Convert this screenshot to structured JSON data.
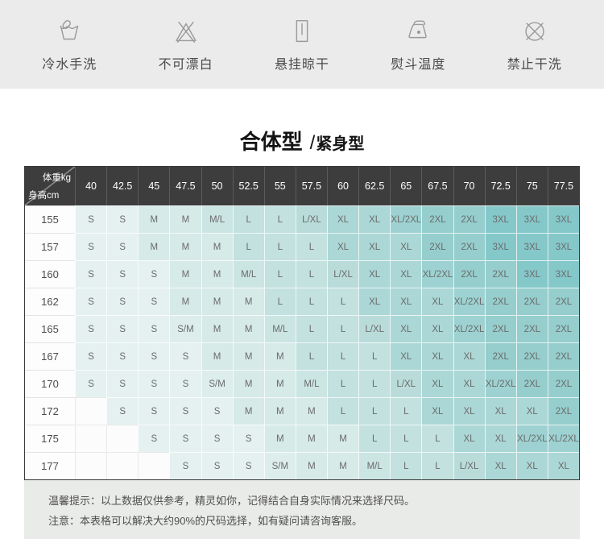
{
  "care": {
    "items": [
      {
        "icon": "handwash-icon",
        "label": "冷水手洗"
      },
      {
        "icon": "no-bleach-icon",
        "label": "不可漂白"
      },
      {
        "icon": "hang-dry-icon",
        "label": "悬挂晾干"
      },
      {
        "icon": "iron-icon",
        "label": "熨斗温度"
      },
      {
        "icon": "no-dryclean-icon",
        "label": "禁止干洗"
      }
    ]
  },
  "title": {
    "primary": "合体型",
    "separator": "/",
    "secondary": "紧身型"
  },
  "size_table": {
    "corner": {
      "top_right": "体重kg",
      "bottom_left": "身高cm"
    },
    "weight_columns": [
      "40",
      "42.5",
      "45",
      "47.5",
      "50",
      "52.5",
      "55",
      "57.5",
      "60",
      "62.5",
      "65",
      "67.5",
      "70",
      "72.5",
      "75",
      "77.5"
    ],
    "rows": [
      {
        "height": "155",
        "sizes": [
          "S",
          "S",
          "M",
          "M",
          "M/L",
          "L",
          "L",
          "L/XL",
          "XL",
          "XL",
          "XL/2XL",
          "2XL",
          "2XL",
          "3XL",
          "3XL",
          "3XL"
        ]
      },
      {
        "height": "157",
        "sizes": [
          "S",
          "S",
          "M",
          "M",
          "M",
          "L",
          "L",
          "L",
          "XL",
          "XL",
          "XL",
          "2XL",
          "2XL",
          "3XL",
          "3XL",
          "3XL"
        ]
      },
      {
        "height": "160",
        "sizes": [
          "S",
          "S",
          "S",
          "M",
          "M",
          "M/L",
          "L",
          "L",
          "L/XL",
          "XL",
          "XL",
          "XL/2XL",
          "2XL",
          "2XL",
          "3XL",
          "3XL"
        ]
      },
      {
        "height": "162",
        "sizes": [
          "S",
          "S",
          "S",
          "M",
          "M",
          "M",
          "L",
          "L",
          "L",
          "XL",
          "XL",
          "XL",
          "XL/2XL",
          "2XL",
          "2XL",
          "2XL"
        ]
      },
      {
        "height": "165",
        "sizes": [
          "S",
          "S",
          "S",
          "S/M",
          "M",
          "M",
          "M/L",
          "L",
          "L",
          "L/XL",
          "XL",
          "XL",
          "XL/2XL",
          "2XL",
          "2XL",
          "2XL"
        ]
      },
      {
        "height": "167",
        "sizes": [
          "S",
          "S",
          "S",
          "S",
          "M",
          "M",
          "M",
          "L",
          "L",
          "L",
          "XL",
          "XL",
          "XL",
          "2XL",
          "2XL",
          "2XL"
        ]
      },
      {
        "height": "170",
        "sizes": [
          "S",
          "S",
          "S",
          "S",
          "S/M",
          "M",
          "M",
          "M/L",
          "L",
          "L",
          "L/XL",
          "XL",
          "XL",
          "XL/2XL",
          "2XL",
          "2XL"
        ]
      },
      {
        "height": "172",
        "sizes": [
          "",
          "S",
          "S",
          "S",
          "S",
          "M",
          "M",
          "M",
          "L",
          "L",
          "L",
          "XL",
          "XL",
          "XL",
          "XL",
          "2XL"
        ]
      },
      {
        "height": "175",
        "sizes": [
          "",
          "",
          "S",
          "S",
          "S",
          "S",
          "M",
          "M",
          "M",
          "L",
          "L",
          "L",
          "XL",
          "XL",
          "XL/2XL",
          "XL/2XL"
        ]
      },
      {
        "height": "177",
        "sizes": [
          "",
          "",
          "",
          "S",
          "S",
          "S",
          "S/M",
          "M",
          "M",
          "M/L",
          "L",
          "L",
          "L/XL",
          "XL",
          "XL",
          "XL"
        ]
      }
    ]
  },
  "notes": {
    "line1": "温馨提示：以上数据仅供参考，精灵如你，记得结合自身实际情况来选择尺码。",
    "line2": "注意：本表格可以解决大约90%的尺码选择，如有疑问请咨询客服。"
  },
  "colors": {
    "band_bg": "#ebebeb",
    "header_bg": "#3d3d3d",
    "notes_bg": "#e9ebe8",
    "size_colors": {
      "": "#fcfcfc",
      "S": "#e4f1f0",
      "S/M": "#dcedec",
      "M": "#d6eae8",
      "M/L": "#cbe5e3",
      "L": "#c2e1df",
      "L/XL": "#b9dcdb",
      "XL": "#abd7d6",
      "XL/2XL": "#9ed2d2",
      "2XL": "#95cecd",
      "3XL": "#85c8ca"
    }
  }
}
